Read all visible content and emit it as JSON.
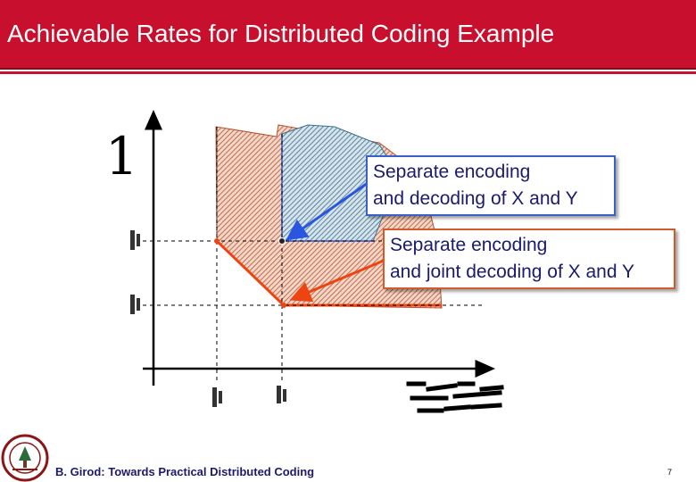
{
  "slide": {
    "title": "Achievable Rates for Distributed Coding Example"
  },
  "diagram": {
    "big_number": "1",
    "callouts": [
      {
        "text_line1": "Separate encoding",
        "text_line2": "and decoding of X and Y",
        "color": "#3a5fc9"
      },
      {
        "text_line1": "Separate encoding",
        "text_line2": "and joint decoding of X and Y",
        "color": "#d45a2a"
      }
    ],
    "colors": {
      "separate_region": "#3a6f8f",
      "joint_region": "#b5532f",
      "separate_arrow": "#2a55e0",
      "joint_line": "#ee4411"
    }
  },
  "footer": {
    "text": "B. Girod: Towards Practical Distributed Coding",
    "page_number": "7"
  }
}
